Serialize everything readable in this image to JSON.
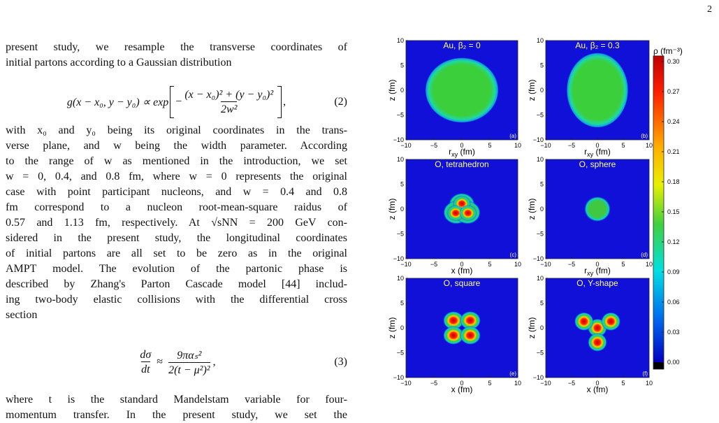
{
  "page_number": "2",
  "paragraphs": [
    {
      "lines": [
        "present study, we resample the transverse coordinates of",
        "initial partons according to a Gaussian distribution"
      ]
    },
    {
      "lines": [
        "with x₀ and y₀ being its original coordinates in the trans-",
        "verse plane, and w being the width parameter. According",
        "to the range of w as mentioned in the introduction, we set",
        "w = 0, 0.4, and 0.8 fm, where w = 0 represents the original",
        "case with point participant nucleons, and w = 0.4 and 0.8",
        "fm correspond to a nucleon root-mean-square raidus of",
        "0.57 and 1.13 fm, respectively. At √sNN = 200 GeV con-",
        "sidered in the present study, the longitudinal coordinates",
        "of initial partons are all set to be zero as in the original",
        "AMPT model. The evolution of the partonic phase is",
        "described by Zhang's Parton Cascade model [44] includ-",
        "ing two-body elastic collisions with the differential cross",
        "section"
      ]
    },
    {
      "lines": [
        "where t is the standard Mandelstam variable for four-",
        "momentum transfer. In the present study, we set the"
      ]
    }
  ],
  "equation_2": {
    "lhs": "g(x − x₀, y − y₀) ∝ exp",
    "sign": "−",
    "numerator": "(x − x₀)² + (y − y₀)²",
    "denominator": "2w²",
    "trail": ",",
    "number": "(2)"
  },
  "equation_3": {
    "lhs_numerator": "dσ",
    "lhs_denominator": "dt",
    "relation": "≈",
    "numerator": "9παₛ²",
    "denominator": "2(t − μ²)²",
    "trail": ",",
    "number": "(3)"
  },
  "figure": {
    "x_ticks": [
      "−10",
      "−5",
      "0",
      "5",
      "10"
    ],
    "y_ticks": [
      "10",
      "5",
      "0",
      "−5",
      "−10"
    ],
    "y_label": "z (fm)",
    "panels": [
      {
        "title": "Au, β₂ = 0",
        "tag": "(a)",
        "x_label": "r",
        "x_label_sub": "xy",
        "x_label_unit": " (fm)"
      },
      {
        "title": "Au, β₂ = 0.3",
        "tag": "(b)",
        "x_label": "r",
        "x_label_sub": "xy",
        "x_label_unit": " (fm)"
      },
      {
        "title": "O, tetrahedron",
        "tag": "(c)",
        "x_label": "x (fm)"
      },
      {
        "title": "O, sphere",
        "tag": "(d)",
        "x_label": "r",
        "x_label_sub": "xy",
        "x_label_unit": " (fm)"
      },
      {
        "title": "O, square",
        "tag": "(e)",
        "x_label": "x (fm)"
      },
      {
        "title": "O, Y-shape",
        "tag": "(f)",
        "x_label": "x (fm)"
      }
    ],
    "colorbar": {
      "label": "ρ (fm⁻³)",
      "ticks": [
        "0.30",
        "0.27",
        "0.24",
        "0.21",
        "0.18",
        "0.15",
        "0.12",
        "0.09",
        "0.06",
        "0.03",
        "0.00"
      ]
    }
  }
}
